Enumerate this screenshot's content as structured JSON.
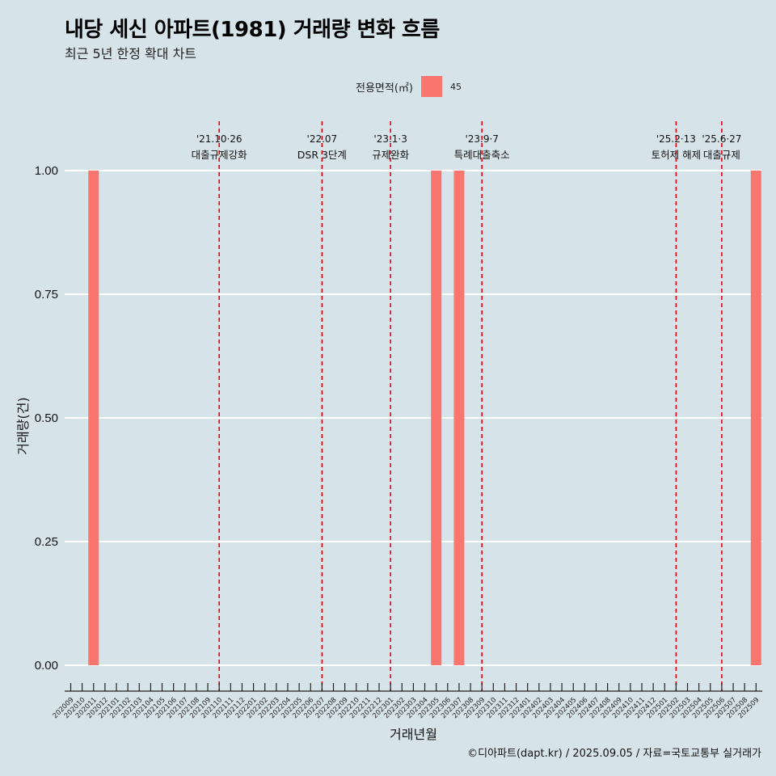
{
  "chart_data": {
    "type": "bar",
    "title": "내당 세신 아파트(1981) 거래량 변화 흐름",
    "subtitle": "최근 5년 한정 확대 차트",
    "xlabel": "거래년월",
    "ylabel": "거래량(건)",
    "ylim": [
      0,
      1
    ],
    "yticks": [
      "0.00",
      "0.25",
      "0.50",
      "0.75",
      "1.00"
    ],
    "grid": true,
    "legend": {
      "title": "전용면적(㎡)",
      "position": "top",
      "entries": [
        {
          "label": "45",
          "color": "#f8766d"
        }
      ]
    },
    "categories": [
      "202009",
      "202010",
      "202011",
      "202012",
      "202101",
      "202102",
      "202103",
      "202104",
      "202105",
      "202106",
      "202107",
      "202108",
      "202109",
      "202110",
      "202111",
      "202112",
      "202201",
      "202202",
      "202203",
      "202204",
      "202205",
      "202206",
      "202207",
      "202208",
      "202209",
      "202210",
      "202211",
      "202212",
      "202301",
      "202302",
      "202303",
      "202304",
      "202305",
      "202306",
      "202307",
      "202308",
      "202309",
      "202310",
      "202311",
      "202312",
      "202401",
      "202402",
      "202403",
      "202404",
      "202405",
      "202406",
      "202407",
      "202408",
      "202409",
      "202410",
      "202411",
      "202412",
      "202501",
      "202502",
      "202503",
      "202504",
      "202505",
      "202506",
      "202507",
      "202508",
      "202509"
    ],
    "series": [
      {
        "name": "45",
        "color": "#f8766d",
        "bars": [
          {
            "x": "202011",
            "value": 1
          },
          {
            "x": "202305",
            "value": 1
          },
          {
            "x": "202307",
            "value": 1
          },
          {
            "x": "202509",
            "value": 1
          }
        ]
      }
    ],
    "annotations": [
      {
        "x": "202110",
        "date": "'21.10·26",
        "label": "대출규제강화"
      },
      {
        "x": "202207",
        "date": "'22.07",
        "label": "DSR 3단계"
      },
      {
        "x": "202301",
        "date": "'23.1·3",
        "label": "규제완화"
      },
      {
        "x": "202309",
        "date": "'23.9·7",
        "label": "특례대출축소"
      },
      {
        "x": "202502",
        "date": "'25.2·13",
        "label": "토허제 해제"
      },
      {
        "x": "202506",
        "date": "'25.6·27",
        "label": "대출규제"
      }
    ],
    "caption": "©디아파트(dapt.kr) / 2025.09.05 / 자료=국토교통부 실거래가"
  },
  "colors": {
    "background": "#d6e4ea",
    "bar": "#f8766d",
    "annotation_line": "#e8000b",
    "grid": "#ffffff"
  }
}
